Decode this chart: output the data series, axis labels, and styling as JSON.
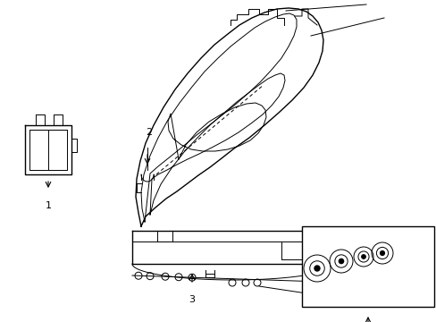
{
  "bg_color": "#ffffff",
  "line_color": "#000000",
  "lw": 1.0,
  "tlw": 0.7,
  "fig_width": 4.89,
  "fig_height": 3.6,
  "dpi": 100
}
